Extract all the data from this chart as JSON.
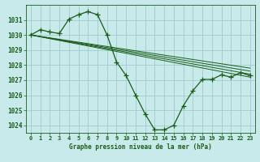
{
  "background_color": "#c8eaea",
  "grid_color": "#a0cccc",
  "line_color": "#1a5c1a",
  "title": "Graphe pression niveau de la mer (hPa)",
  "xlim": [
    -0.5,
    23.5
  ],
  "ylim": [
    1023.5,
    1032.0
  ],
  "yticks": [
    1024,
    1025,
    1026,
    1027,
    1028,
    1029,
    1030,
    1031
  ],
  "xticks": [
    0,
    1,
    2,
    3,
    4,
    5,
    6,
    7,
    8,
    9,
    10,
    11,
    12,
    13,
    14,
    15,
    16,
    17,
    18,
    19,
    20,
    21,
    22,
    23
  ],
  "main_series": [
    [
      0,
      1030.0
    ],
    [
      1,
      1030.35
    ],
    [
      2,
      1030.2
    ],
    [
      3,
      1030.1
    ],
    [
      4,
      1031.05
    ],
    [
      5,
      1031.35
    ],
    [
      6,
      1031.55
    ],
    [
      7,
      1031.35
    ],
    [
      8,
      1030.0
    ],
    [
      9,
      1028.2
    ],
    [
      10,
      1027.3
    ],
    [
      11,
      1026.0
    ],
    [
      12,
      1024.75
    ],
    [
      13,
      1023.7
    ],
    [
      14,
      1023.7
    ],
    [
      15,
      1024.0
    ],
    [
      16,
      1025.3
    ],
    [
      17,
      1026.3
    ],
    [
      18,
      1027.05
    ],
    [
      19,
      1027.05
    ],
    [
      20,
      1027.35
    ],
    [
      21,
      1027.2
    ],
    [
      22,
      1027.5
    ],
    [
      23,
      1027.3
    ]
  ],
  "aux_lines": [
    [
      [
        0,
        1030.0
      ],
      [
        23,
        1027.2
      ]
    ],
    [
      [
        0,
        1030.0
      ],
      [
        23,
        1027.4
      ]
    ],
    [
      [
        0,
        1030.0
      ],
      [
        23,
        1027.6
      ]
    ],
    [
      [
        0,
        1030.0
      ],
      [
        23,
        1027.8
      ]
    ]
  ],
  "title_fontsize": 5.5,
  "tick_fontsize": 5.0,
  "ytick_fontsize": 5.5
}
